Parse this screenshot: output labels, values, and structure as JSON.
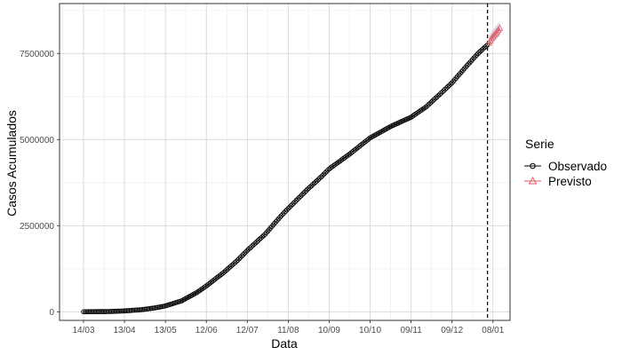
{
  "chart_data": {
    "type": "line",
    "xlabel": "Data",
    "ylabel": "Casos Acumulados",
    "x_ticks": [
      "14/03",
      "13/04",
      "13/05",
      "12/06",
      "12/07",
      "11/08",
      "10/09",
      "10/10",
      "09/11",
      "09/12",
      "08/01"
    ],
    "y_ticks": [
      0,
      2500000,
      5000000,
      7500000
    ],
    "ylim": [
      -250000,
      8950000
    ],
    "grid": true,
    "x_start": "2020-03-14",
    "x_end": "2021-01-14",
    "vline_date": "2021-01-04",
    "legend": {
      "title": "Serie",
      "position": "right"
    },
    "series": [
      {
        "name": "Observado",
        "color": "#000000",
        "marker": "circle",
        "points": [
          [
            "2020-03-14",
            0
          ],
          [
            "2020-04-01",
            7000
          ],
          [
            "2020-04-13",
            25000
          ],
          [
            "2020-04-25",
            60000
          ],
          [
            "2020-05-05",
            110000
          ],
          [
            "2020-05-13",
            170000
          ],
          [
            "2020-05-25",
            320000
          ],
          [
            "2020-06-05",
            560000
          ],
          [
            "2020-06-12",
            750000
          ],
          [
            "2020-06-25",
            1150000
          ],
          [
            "2020-07-05",
            1500000
          ],
          [
            "2020-07-12",
            1780000
          ],
          [
            "2020-07-25",
            2250000
          ],
          [
            "2020-08-05",
            2750000
          ],
          [
            "2020-08-11",
            3000000
          ],
          [
            "2020-08-25",
            3550000
          ],
          [
            "2020-09-05",
            3950000
          ],
          [
            "2020-09-10",
            4150000
          ],
          [
            "2020-09-25",
            4580000
          ],
          [
            "2020-10-10",
            5050000
          ],
          [
            "2020-10-25",
            5380000
          ],
          [
            "2020-11-09",
            5650000
          ],
          [
            "2020-11-20",
            5950000
          ],
          [
            "2020-12-01",
            6350000
          ],
          [
            "2020-12-09",
            6650000
          ],
          [
            "2020-12-20",
            7150000
          ],
          [
            "2020-12-28",
            7500000
          ],
          [
            "2021-01-04",
            7750000
          ]
        ]
      },
      {
        "name": "Previsto",
        "color": "#e05a6a",
        "marker": "triangle",
        "points": [
          [
            "2021-01-05",
            7800000
          ],
          [
            "2021-01-07",
            7930000
          ],
          [
            "2021-01-09",
            8030000
          ],
          [
            "2021-01-11",
            8130000
          ],
          [
            "2021-01-13",
            8230000
          ]
        ],
        "band_upper": [
          8000000,
          8120000,
          8230000,
          8330000,
          8420000
        ],
        "band_lower": [
          7700000,
          7780000,
          7860000,
          7940000,
          8020000
        ]
      }
    ]
  }
}
